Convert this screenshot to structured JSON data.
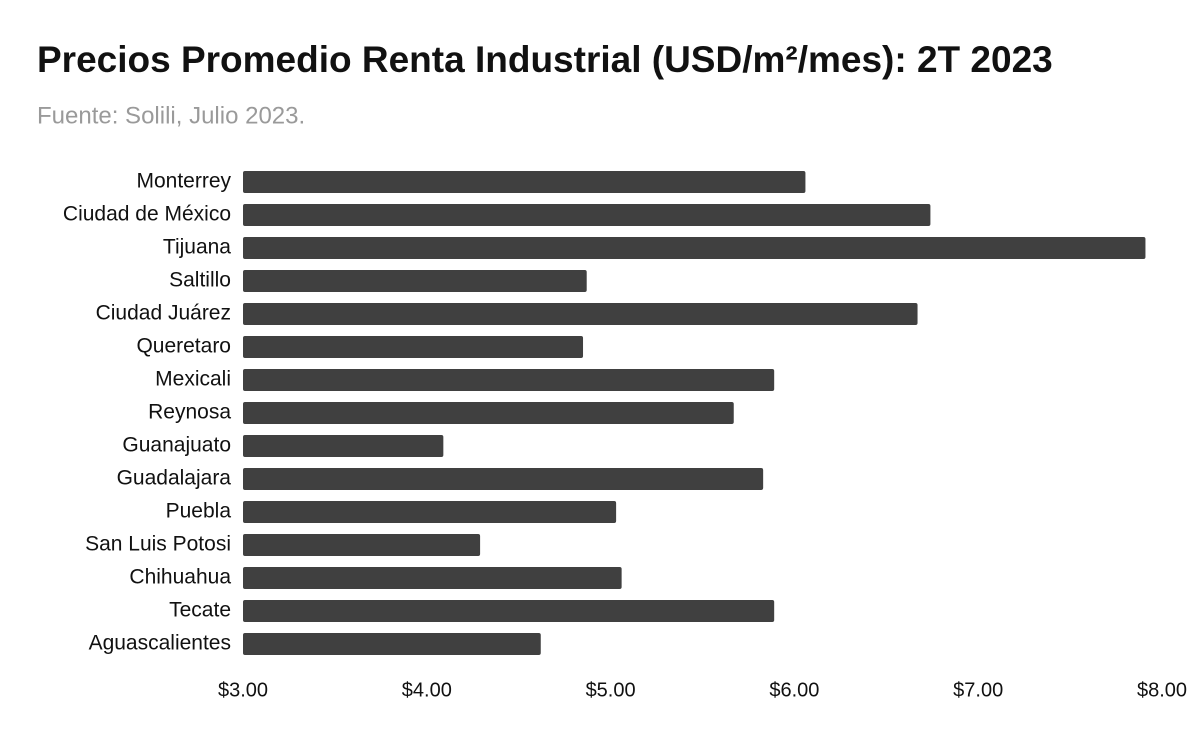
{
  "chart_data": {
    "type": "bar",
    "orientation": "horizontal",
    "title": "Precios Promedio Renta Industrial (USD/m²/mes): 2T 2023",
    "subtitle": "Fuente: Solili, Julio 2023.",
    "categories": [
      "Monterrey",
      "Ciudad de México",
      "Tijuana",
      "Saltillo",
      "Ciudad Juárez",
      "Queretaro",
      "Mexicali",
      "Reynosa",
      "Guanajuato",
      "Guadalajara",
      "Puebla",
      "San Luis Potosi",
      "Chihuahua",
      "Tecate",
      "Aguascalientes"
    ],
    "values": [
      6.06,
      6.74,
      7.91,
      4.87,
      6.67,
      4.85,
      5.89,
      5.67,
      4.09,
      5.83,
      5.03,
      4.29,
      5.06,
      5.89,
      4.62
    ],
    "color": "#404040",
    "xlim": [
      3,
      8
    ],
    "xticks": [
      {
        "value": 3,
        "label": "$3.00"
      },
      {
        "value": 4,
        "label": "$4.00"
      },
      {
        "value": 5,
        "label": "$5.00"
      },
      {
        "value": 6,
        "label": "$6.00"
      },
      {
        "value": 7,
        "label": "$7.00"
      },
      {
        "value": 8,
        "label": "$8.00"
      }
    ],
    "grid": false
  }
}
